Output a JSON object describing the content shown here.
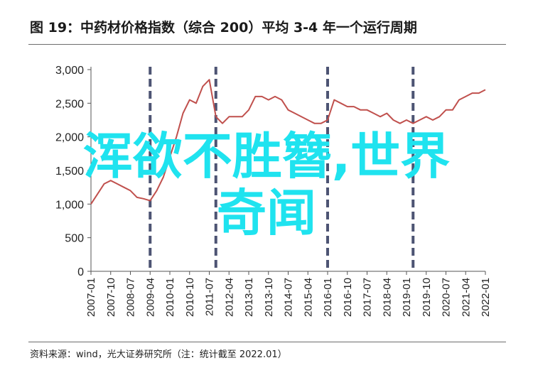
{
  "header": {
    "title": "图 19：中药材价格指数（综合 200）平均 3-4 年一个运行周期"
  },
  "footer": {
    "source": "资料来源：wind，光大证券研究所（注：统计截至 2022.01）"
  },
  "watermark": {
    "line1": "浑欲不胜簪,世界",
    "line2": "奇闻"
  },
  "colors": {
    "series": "#c0504d",
    "cycle_lines": "#4d5473",
    "axis": "#555555",
    "watermark": "#1fe3ef"
  },
  "chart_data": {
    "type": "line",
    "title": "图 19：中药材价格指数（综合 200）平均 3-4 年一个运行周期",
    "xlabel": "",
    "ylabel": "",
    "ylim": [
      0,
      3000
    ],
    "yticks": [
      0,
      500,
      1000,
      1500,
      2000,
      2500,
      3000
    ],
    "ytick_labels": [
      "0",
      "500",
      "1,000",
      "1,500",
      "2,000",
      "2,500",
      "3,000"
    ],
    "xtick_labels": [
      "2007-01",
      "2007-10",
      "2008-07",
      "2009-04",
      "2010-01",
      "2010-10",
      "2011-07",
      "2012-04",
      "2013-01",
      "2013-10",
      "2014-07",
      "2015-04",
      "2016-01",
      "2016-10",
      "2017-07",
      "2018-04",
      "2019-01",
      "2019-10",
      "2020-07",
      "2021-04",
      "2022-01"
    ],
    "grid": false,
    "legend": "none",
    "cycle_markers": [
      "2009-04",
      "2011-10",
      "2016-01",
      "2019-04"
    ],
    "series": [
      {
        "x": [
          "2007-01",
          "2007-04",
          "2007-07",
          "2007-10",
          "2008-01",
          "2008-04",
          "2008-07",
          "2008-10",
          "2009-01",
          "2009-04",
          "2009-07",
          "2009-10",
          "2010-01",
          "2010-04",
          "2010-07",
          "2010-10",
          "2011-01",
          "2011-04",
          "2011-07",
          "2011-10",
          "2012-01",
          "2012-04",
          "2012-07",
          "2012-10",
          "2013-01",
          "2013-04",
          "2013-07",
          "2013-10",
          "2014-01",
          "2014-04",
          "2014-07",
          "2014-10",
          "2015-01",
          "2015-04",
          "2015-07",
          "2015-10",
          "2016-01",
          "2016-04",
          "2016-07",
          "2016-10",
          "2017-01",
          "2017-04",
          "2017-07",
          "2017-10",
          "2018-01",
          "2018-04",
          "2018-07",
          "2018-10",
          "2019-01",
          "2019-04",
          "2019-07",
          "2019-10",
          "2020-01",
          "2020-04",
          "2020-07",
          "2020-10",
          "2021-01",
          "2021-04",
          "2021-07",
          "2021-10",
          "2022-01"
        ],
        "values": [
          1000,
          1150,
          1300,
          1350,
          1300,
          1250,
          1200,
          1100,
          1080,
          1050,
          1200,
          1400,
          1700,
          2000,
          2350,
          2550,
          2500,
          2750,
          2850,
          2300,
          2200,
          2300,
          2300,
          2300,
          2400,
          2600,
          2600,
          2550,
          2600,
          2550,
          2400,
          2350,
          2300,
          2250,
          2200,
          2200,
          2250,
          2550,
          2500,
          2450,
          2450,
          2400,
          2400,
          2350,
          2300,
          2350,
          2250,
          2200,
          2250,
          2200,
          2250,
          2300,
          2250,
          2300,
          2400,
          2400,
          2550,
          2600,
          2650,
          2650,
          2700
        ]
      }
    ]
  }
}
